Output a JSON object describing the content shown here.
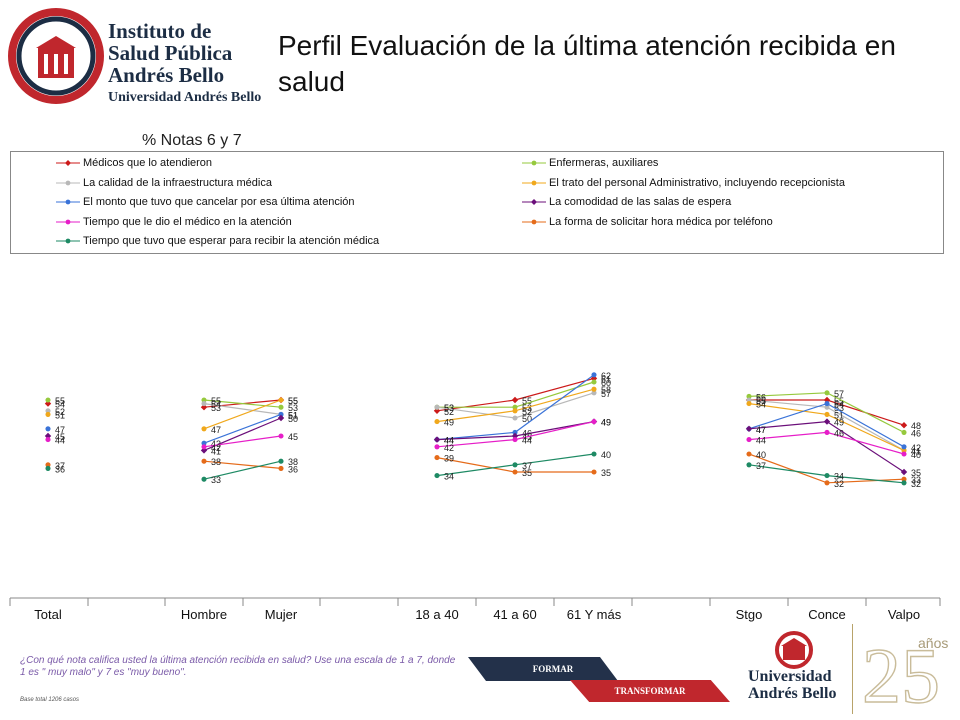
{
  "header": {
    "logo_lines": [
      "Instituto de",
      "Salud Pública",
      "Andrés Bello",
      "Universidad Andrés Bello"
    ],
    "title": "Perfil Evaluación de la última atención recibida en salud",
    "subtitle": "% Notas 6 y 7"
  },
  "colors": {
    "navy": "#23314a",
    "red": "#c0272d",
    "gold": "#b8a36a"
  },
  "chart_data": {
    "type": "line",
    "categories": [
      "Total",
      "Hombre",
      "Mujer",
      "18 a 40",
      "41 a 60",
      "61 Y más",
      "Stgo",
      "Conce",
      "Valpo"
    ],
    "segments": [
      [
        0
      ],
      [
        1,
        2
      ],
      [
        3,
        4,
        5
      ],
      [
        6,
        7,
        8
      ]
    ],
    "ylim": [
      0,
      100
    ],
    "legend_position": "top",
    "series": [
      {
        "name": "Médicos que lo atendieron",
        "color": "#cc1a1a",
        "marker": "diamond",
        "values": [
          54,
          53,
          55,
          52,
          55,
          61,
          55,
          55,
          48
        ]
      },
      {
        "name": "Enfermeras, auxiliares",
        "color": "#96c93d",
        "marker": "circle",
        "values": [
          55,
          55,
          53,
          53,
          53,
          60,
          56,
          57,
          46
        ]
      },
      {
        "name": "La calidad de la infraestructura médica",
        "color": "#b8b8b8",
        "marker": "circle",
        "values": [
          52,
          54,
          51,
          53,
          50,
          57,
          55,
          53,
          41
        ]
      },
      {
        "name": "El trato del personal Administrativo, incluyendo recepcionista",
        "color": "#f0a81c",
        "marker": "circle",
        "values": [
          51,
          47,
          55,
          49,
          52,
          58,
          54,
          51,
          41
        ]
      },
      {
        "name": "El monto que tuvo que cancelar por esa última atención",
        "color": "#3a73d8",
        "marker": "circle",
        "values": [
          47,
          43,
          51,
          44,
          46,
          62,
          47,
          54,
          42
        ]
      },
      {
        "name": "La comodidad de las salas de espera",
        "color": "#6b0f7a",
        "marker": "diamond",
        "values": [
          45,
          41,
          50,
          44,
          45,
          49,
          47,
          49,
          35
        ]
      },
      {
        "name": "Tiempo que le dio el médico en la atención",
        "color": "#e61ec8",
        "marker": "circle",
        "values": [
          44,
          42,
          45,
          42,
          44,
          49,
          44,
          46,
          40
        ]
      },
      {
        "name": "La forma de solicitar hora médica por teléfono",
        "color": "#e56b1a",
        "marker": "circle",
        "values": [
          37,
          38,
          36,
          39,
          35,
          35,
          40,
          32,
          33
        ]
      },
      {
        "name": "Tiempo que tuvo que esperar para recibir la atención médica",
        "color": "#1e8a64",
        "marker": "circle",
        "values": [
          36,
          33,
          38,
          34,
          37,
          40,
          37,
          34,
          32
        ]
      }
    ]
  },
  "footer": {
    "question": "¿Con qué nota califica usted la última atención recibida en salud? Use una escala de 1 a 7, donde 1 es \" muy malo\" y 7 es \"muy bueno\".",
    "base": "Base total 1206  casos",
    "banner_top": "FORMAR",
    "banner_bottom": "TRANSFORMAR",
    "university": [
      "Universidad",
      "Andrés Bello"
    ],
    "anios_word": "años",
    "anios_number": "25"
  }
}
